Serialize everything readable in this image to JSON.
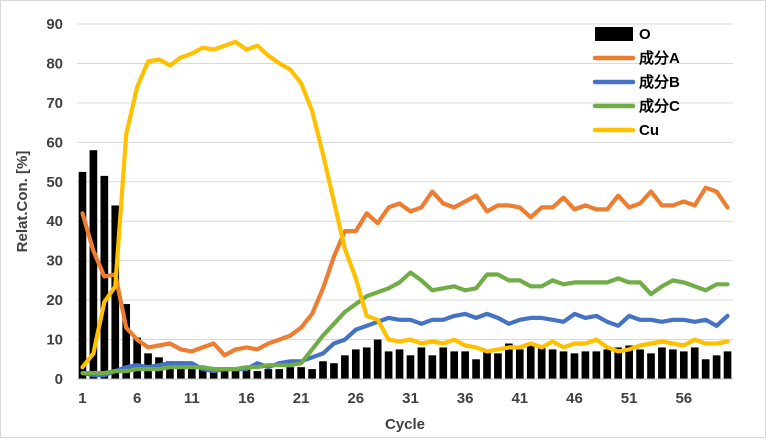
{
  "chart_data": {
    "type": "bar+line",
    "title": "",
    "xlabel": "Cycle",
    "ylabel": "Relat.Con. [%]",
    "ylim": [
      0,
      90
    ],
    "yticks": [
      0,
      10,
      20,
      30,
      40,
      50,
      60,
      70,
      80,
      90
    ],
    "xlim": [
      1,
      60
    ],
    "xtick_labels": [
      "1",
      "6",
      "11",
      "16",
      "21",
      "26",
      "31",
      "36",
      "41",
      "46",
      "51",
      "56"
    ],
    "grid": "horizontal",
    "legend_position": "top-right",
    "x": [
      1,
      2,
      3,
      4,
      5,
      6,
      7,
      8,
      9,
      10,
      11,
      12,
      13,
      14,
      15,
      16,
      17,
      18,
      19,
      20,
      21,
      22,
      23,
      24,
      25,
      26,
      27,
      28,
      29,
      30,
      31,
      32,
      33,
      34,
      35,
      36,
      37,
      38,
      39,
      40,
      41,
      42,
      43,
      44,
      45,
      46,
      47,
      48,
      49,
      50,
      51,
      52,
      53,
      54,
      55,
      56,
      57,
      58,
      59,
      60
    ],
    "series": [
      {
        "name": "O",
        "type": "bar",
        "color": "#000000",
        "values": [
          52.5,
          58,
          51.5,
          44,
          19,
          10.5,
          6.5,
          5.5,
          4.5,
          4.5,
          3.5,
          3,
          2.5,
          2.5,
          2.5,
          2.5,
          2,
          2.5,
          2.5,
          3,
          3,
          2.5,
          4.5,
          4,
          6,
          7.5,
          8,
          10,
          7,
          7.5,
          6,
          8,
          6,
          8,
          7,
          7,
          5,
          7,
          6.5,
          9,
          7.5,
          8.5,
          8,
          7.5,
          7,
          6.5,
          7,
          7,
          7.5,
          8,
          8.5,
          7.5,
          6.5,
          8,
          7.5,
          7,
          8,
          5,
          6,
          7
        ]
      },
      {
        "name": "成分A",
        "type": "line",
        "color": "#ED7D31",
        "values": [
          42,
          32.5,
          26,
          26.5,
          13,
          10,
          8,
          8.5,
          9,
          7.5,
          7,
          8,
          9,
          6,
          7.5,
          8,
          7.5,
          9,
          10,
          11,
          13,
          16.5,
          23,
          31,
          37.5,
          37.5,
          42,
          39.5,
          43.5,
          44.5,
          42.5,
          43.5,
          47.5,
          44.5,
          43.5,
          45,
          46.5,
          42.5,
          44,
          44,
          43.5,
          41,
          43.5,
          43.5,
          46,
          43,
          44,
          43,
          43,
          46.5,
          43.5,
          44.5,
          47.5,
          44,
          44,
          45,
          44,
          48.5,
          47.5,
          43.5
        ]
      },
      {
        "name": "成分B",
        "type": "line",
        "color": "#4472C4",
        "values": [
          1.5,
          1,
          1,
          2,
          3,
          3.5,
          3,
          3.5,
          4,
          4,
          4,
          2.5,
          2,
          2.5,
          2.5,
          2.5,
          4,
          3,
          4,
          4.5,
          4.5,
          5.5,
          6.5,
          9,
          10,
          12.5,
          13.5,
          14.5,
          15.5,
          15,
          15,
          14,
          15,
          15,
          16,
          16.5,
          15.5,
          16.5,
          15.5,
          14,
          15,
          15.5,
          15.5,
          15,
          14.5,
          16.5,
          15.5,
          16,
          14.5,
          13.5,
          16,
          15,
          15,
          14.5,
          15,
          15,
          14.5,
          15,
          13.5,
          16
        ]
      },
      {
        "name": "成分C",
        "type": "line",
        "color": "#70AD47",
        "values": [
          1.5,
          1.5,
          1.5,
          2,
          2,
          2.5,
          2.5,
          2.5,
          3,
          3,
          3,
          3,
          2.5,
          2.5,
          2.5,
          3,
          3,
          3.5,
          3.5,
          3.5,
          4,
          7.5,
          11,
          14,
          17,
          19,
          21,
          22,
          23,
          24.5,
          27,
          25,
          22.5,
          23,
          23.5,
          22.5,
          23,
          26.5,
          26.5,
          25,
          25,
          23.5,
          23.5,
          25,
          24,
          24.5,
          24.5,
          24.5,
          24.5,
          25.5,
          24.5,
          24.5,
          21.5,
          23.5,
          25,
          24.5,
          23.5,
          22.5,
          24,
          24
        ]
      },
      {
        "name": "Cu",
        "type": "line",
        "color": "#FFC000",
        "values": [
          3,
          6.5,
          19.5,
          23.5,
          62,
          74,
          80.5,
          81,
          79.5,
          81.5,
          82.5,
          84,
          83.5,
          84.5,
          85.5,
          83.5,
          84.5,
          82,
          80,
          78.5,
          75,
          68,
          57,
          45,
          33,
          25.5,
          16,
          15,
          10,
          9.5,
          10,
          9,
          9.5,
          9,
          10,
          8.5,
          8,
          7,
          7.5,
          8,
          8,
          9,
          8,
          9.5,
          8,
          9,
          9,
          10,
          8,
          7,
          7.5,
          8.5,
          9,
          9.5,
          9,
          8.5,
          10,
          9,
          9,
          9.5
        ]
      }
    ]
  }
}
